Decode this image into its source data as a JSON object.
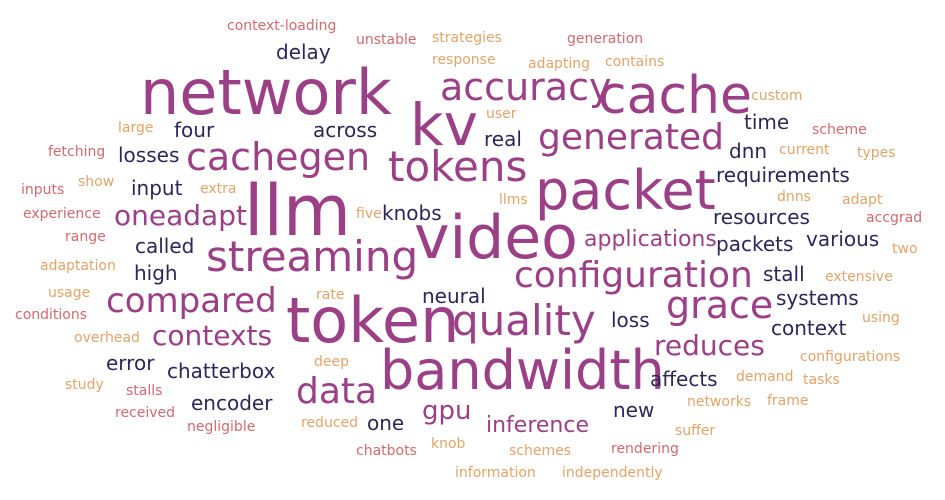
{
  "colors": {
    "magenta": "#9b3f87",
    "dark": "#2e2659",
    "rose": "#d06a6f",
    "peach": "#e3a36a"
  },
  "words": [
    "network",
    "llm",
    "token",
    "video",
    "bandwidth",
    "packet",
    "kv",
    "cache",
    "tokens",
    "streaming",
    "quality",
    "cachegen",
    "configuration",
    "accuracy",
    "generated",
    "grace",
    "compared",
    "data",
    "contexts",
    "oneadapt",
    "reduces",
    "applications",
    "gpu",
    "inference",
    "four",
    "across",
    "real",
    "delay",
    "time",
    "dnn",
    "requirements",
    "input",
    "losses",
    "resources",
    "packets",
    "various",
    "knobs",
    "called",
    "high",
    "stall",
    "systems",
    "neural",
    "context",
    "loss",
    "error",
    "chatterbox",
    "affects",
    "encoder",
    "new",
    "one",
    "context-loading",
    "unstable",
    "strategies",
    "generation",
    "response",
    "adapting",
    "contains",
    "custom",
    "large",
    "user",
    "scheme",
    "fetching",
    "current",
    "types",
    "show",
    "inputs",
    "extra",
    "dnns",
    "adapt",
    "experience",
    "five",
    "llms",
    "accgrad",
    "range",
    "two",
    "adaptation",
    "extensive",
    "usage",
    "rate",
    "conditions",
    "using",
    "overhead",
    "deep",
    "configurations",
    "study",
    "demand",
    "tasks",
    "stalls",
    "networks",
    "frame",
    "received",
    "reduced",
    "suffer",
    "negligible",
    "chatbots",
    "knob",
    "rendering",
    "schemes",
    "information",
    "independently"
  ]
}
